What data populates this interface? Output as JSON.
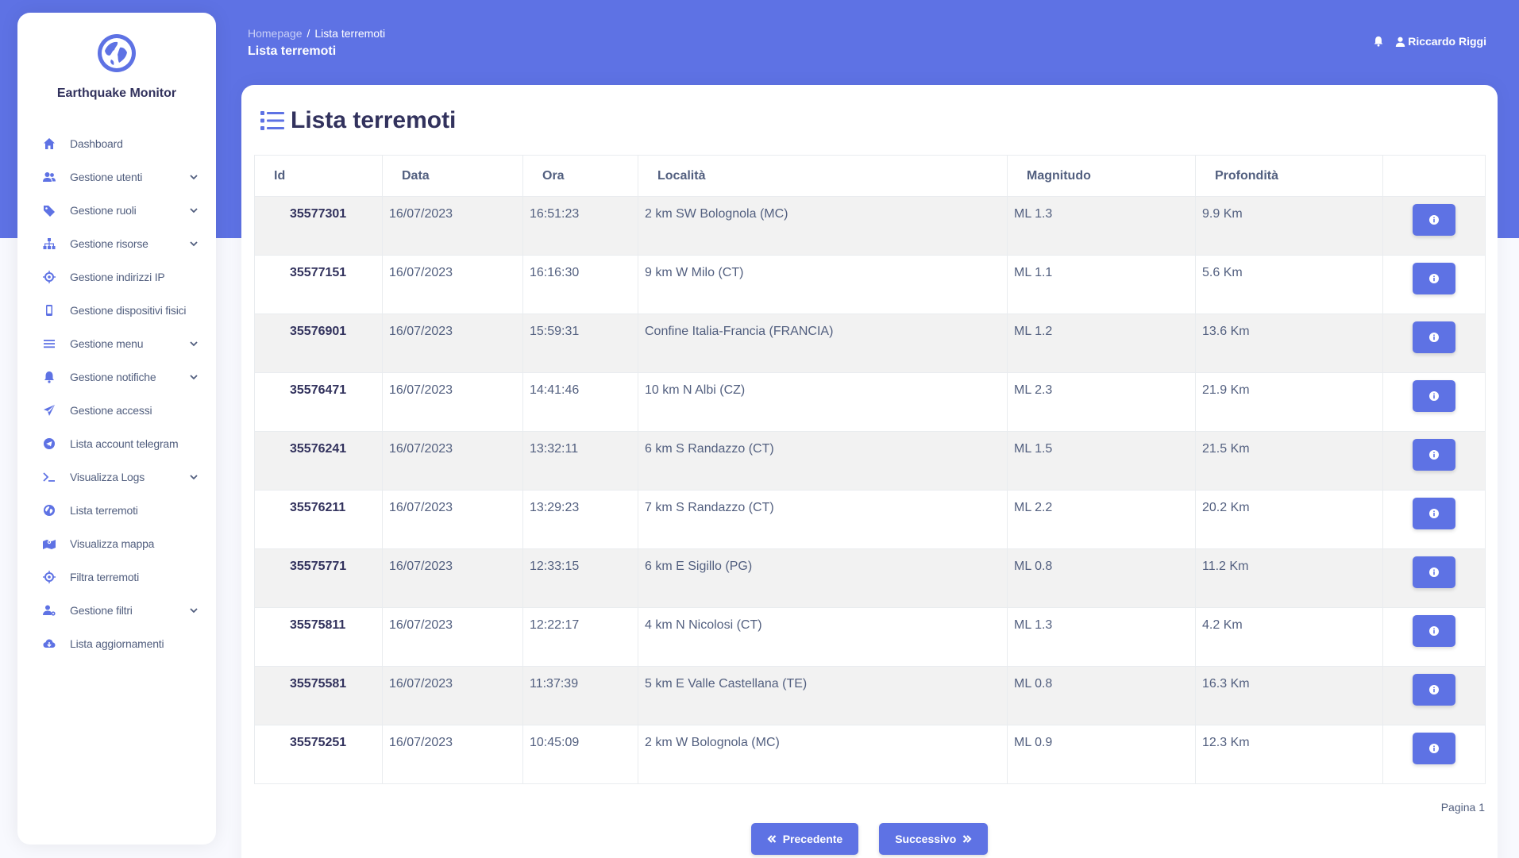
{
  "app": {
    "brand": "Earthquake Monitor"
  },
  "sidebar": {
    "items": [
      {
        "label": "Dashboard",
        "icon": "home-icon",
        "has_submenu": false
      },
      {
        "label": "Gestione utenti",
        "icon": "users-icon",
        "has_submenu": true
      },
      {
        "label": "Gestione ruoli",
        "icon": "tags-icon",
        "has_submenu": true
      },
      {
        "label": "Gestione risorse",
        "icon": "sitemap-icon",
        "has_submenu": true
      },
      {
        "label": "Gestione indirizzi IP",
        "icon": "crosshair-icon",
        "has_submenu": false
      },
      {
        "label": "Gestione dispositivi fisici",
        "icon": "mobile-icon",
        "has_submenu": false
      },
      {
        "label": "Gestione menu",
        "icon": "bars-icon",
        "has_submenu": true
      },
      {
        "label": "Gestione notifiche",
        "icon": "bell-icon",
        "has_submenu": true
      },
      {
        "label": "Gestione accessi",
        "icon": "paper-plane-icon",
        "has_submenu": false
      },
      {
        "label": "Lista account telegram",
        "icon": "telegram-icon",
        "has_submenu": false
      },
      {
        "label": "Visualizza Logs",
        "icon": "terminal-icon",
        "has_submenu": true
      },
      {
        "label": "Lista terremoti",
        "icon": "globe-icon",
        "has_submenu": false
      },
      {
        "label": "Visualizza mappa",
        "icon": "map-icon",
        "has_submenu": false
      },
      {
        "label": "Filtra terremoti",
        "icon": "crosshair-icon",
        "has_submenu": false
      },
      {
        "label": "Gestione filtri",
        "icon": "user-gear-icon",
        "has_submenu": true
      },
      {
        "label": "Lista aggiornamenti",
        "icon": "cloud-download-icon",
        "has_submenu": false
      }
    ]
  },
  "header": {
    "breadcrumb_home": "Homepage",
    "breadcrumb_sep": "/",
    "breadcrumb_current": "Lista terremoti",
    "page_title": "Lista terremoti",
    "user_name": "Riccardo Riggi"
  },
  "main": {
    "title": "Lista terremoti",
    "table": {
      "columns": [
        "Id",
        "Data",
        "Ora",
        "Località",
        "Magnitudo",
        "Profondità",
        ""
      ],
      "rows": [
        [
          "35577301",
          "16/07/2023",
          "16:51:23",
          "2 km SW Bolognola (MC)",
          "ML 1.3",
          "9.9 Km"
        ],
        [
          "35577151",
          "16/07/2023",
          "16:16:30",
          "9 km W Milo (CT)",
          "ML 1.1",
          "5.6 Km"
        ],
        [
          "35576901",
          "16/07/2023",
          "15:59:31",
          "Confine Italia-Francia (FRANCIA)",
          "ML 1.2",
          "13.6 Km"
        ],
        [
          "35576471",
          "16/07/2023",
          "14:41:46",
          "10 km N Albi (CZ)",
          "ML 2.3",
          "21.9 Km"
        ],
        [
          "35576241",
          "16/07/2023",
          "13:32:11",
          "6 km S Randazzo (CT)",
          "ML 1.5",
          "21.5 Km"
        ],
        [
          "35576211",
          "16/07/2023",
          "13:29:23",
          "7 km S Randazzo (CT)",
          "ML 2.2",
          "20.2 Km"
        ],
        [
          "35575771",
          "16/07/2023",
          "12:33:15",
          "6 km E Sigillo (PG)",
          "ML 0.8",
          "11.2 Km"
        ],
        [
          "35575811",
          "16/07/2023",
          "12:22:17",
          "4 km N Nicolosi (CT)",
          "ML 1.3",
          "4.2 Km"
        ],
        [
          "35575581",
          "16/07/2023",
          "11:37:39",
          "5 km E Valle Castellana (TE)",
          "ML 0.8",
          "16.3 Km"
        ],
        [
          "35575251",
          "16/07/2023",
          "10:45:09",
          "2 km W Bolognola (MC)",
          "ML 0.9",
          "12.3 Km"
        ]
      ]
    },
    "pagination": {
      "page_label": "Pagina 1",
      "prev_label": "Precedente",
      "next_label": "Successivo"
    }
  },
  "colors": {
    "accent": "#5e72e4",
    "text": "#525f7f",
    "heading": "#32325d",
    "row_stripe": "#f2f2f2"
  }
}
